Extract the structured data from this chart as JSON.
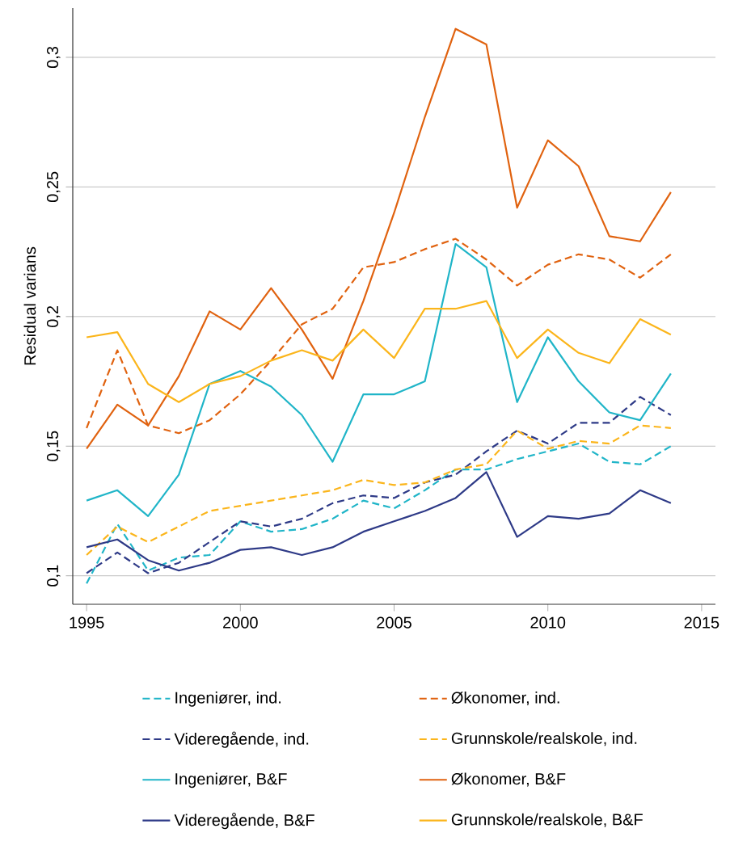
{
  "chart_data": {
    "type": "line",
    "ylabel": "Residual varians",
    "x": [
      1995,
      1996,
      1997,
      1998,
      1999,
      2000,
      2001,
      2002,
      2003,
      2004,
      2005,
      2006,
      2007,
      2008,
      2009,
      2010,
      2011,
      2012,
      2013,
      2014
    ],
    "xlim": [
      1994.55,
      2015.45
    ],
    "xticks": [
      1995,
      2000,
      2005,
      2010,
      2015
    ],
    "ylim": [
      0.089,
      0.319
    ],
    "yticks": [
      {
        "value": 0.1,
        "label": "0,1"
      },
      {
        "value": 0.15,
        "label": "0,15"
      },
      {
        "value": 0.2,
        "label": "0,2"
      },
      {
        "value": 0.25,
        "label": "0,25"
      },
      {
        "value": 0.3,
        "label": "0,3"
      }
    ],
    "grid": "y",
    "legend": "bottom",
    "series": [
      {
        "name": "Ingeniører, ind.",
        "color": "#20b5c8",
        "line_style": "dashed",
        "values": [
          0.097,
          0.12,
          0.102,
          0.107,
          0.108,
          0.121,
          0.117,
          0.118,
          0.122,
          0.129,
          0.126,
          0.133,
          0.141,
          0.141,
          0.145,
          0.148,
          0.151,
          0.144,
          0.143,
          0.15
        ]
      },
      {
        "name": "Økonomer, ind.",
        "color": "#e0620f",
        "line_style": "dashed",
        "values": [
          0.157,
          0.187,
          0.158,
          0.155,
          0.16,
          0.17,
          0.183,
          0.197,
          0.203,
          0.219,
          0.221,
          0.226,
          0.23,
          0.222,
          0.212,
          0.22,
          0.224,
          0.222,
          0.215,
          0.224
        ]
      },
      {
        "name": "Videregående, ind.",
        "color": "#2e3a87",
        "line_style": "dashed",
        "values": [
          0.101,
          0.109,
          0.101,
          0.105,
          0.113,
          0.121,
          0.119,
          0.122,
          0.128,
          0.131,
          0.13,
          0.136,
          0.139,
          0.148,
          0.156,
          0.151,
          0.159,
          0.159,
          0.169,
          0.162
        ]
      },
      {
        "name": "Grunnskole/realskole, ind.",
        "color": "#fbb51b",
        "line_style": "dashed",
        "values": [
          0.108,
          0.119,
          0.113,
          0.119,
          0.125,
          0.127,
          0.129,
          0.131,
          0.133,
          0.137,
          0.135,
          0.136,
          0.141,
          0.143,
          0.156,
          0.149,
          0.152,
          0.151,
          0.158,
          0.157
        ]
      },
      {
        "name": "Ingeniører, B&F",
        "color": "#20b5c8",
        "line_style": "solid",
        "values": [
          0.129,
          0.133,
          0.123,
          0.139,
          0.174,
          0.179,
          0.173,
          0.162,
          0.144,
          0.17,
          0.17,
          0.175,
          0.228,
          0.219,
          0.167,
          0.192,
          0.175,
          0.163,
          0.16,
          0.178
        ]
      },
      {
        "name": "Økonomer, B&F",
        "color": "#e0620f",
        "line_style": "solid",
        "values": [
          0.149,
          0.166,
          0.158,
          0.177,
          0.202,
          0.195,
          0.211,
          0.195,
          0.176,
          0.206,
          0.24,
          0.277,
          0.311,
          0.305,
          0.242,
          0.268,
          0.258,
          0.231,
          0.229,
          0.248
        ]
      },
      {
        "name": "Videregående, B&F",
        "color": "#2e3a87",
        "line_style": "solid",
        "values": [
          0.111,
          0.114,
          0.106,
          0.102,
          0.105,
          0.11,
          0.111,
          0.108,
          0.111,
          0.117,
          0.121,
          0.125,
          0.13,
          0.14,
          0.115,
          0.123,
          0.122,
          0.124,
          0.133,
          0.128
        ]
      },
      {
        "name": "Grunnskole/realskole, B&F",
        "color": "#fbb51b",
        "line_style": "solid",
        "values": [
          0.192,
          0.194,
          0.174,
          0.167,
          0.174,
          0.177,
          0.183,
          0.187,
          0.183,
          0.195,
          0.184,
          0.203,
          0.203,
          0.206,
          0.184,
          0.195,
          0.186,
          0.182,
          0.199,
          0.193
        ]
      }
    ]
  }
}
